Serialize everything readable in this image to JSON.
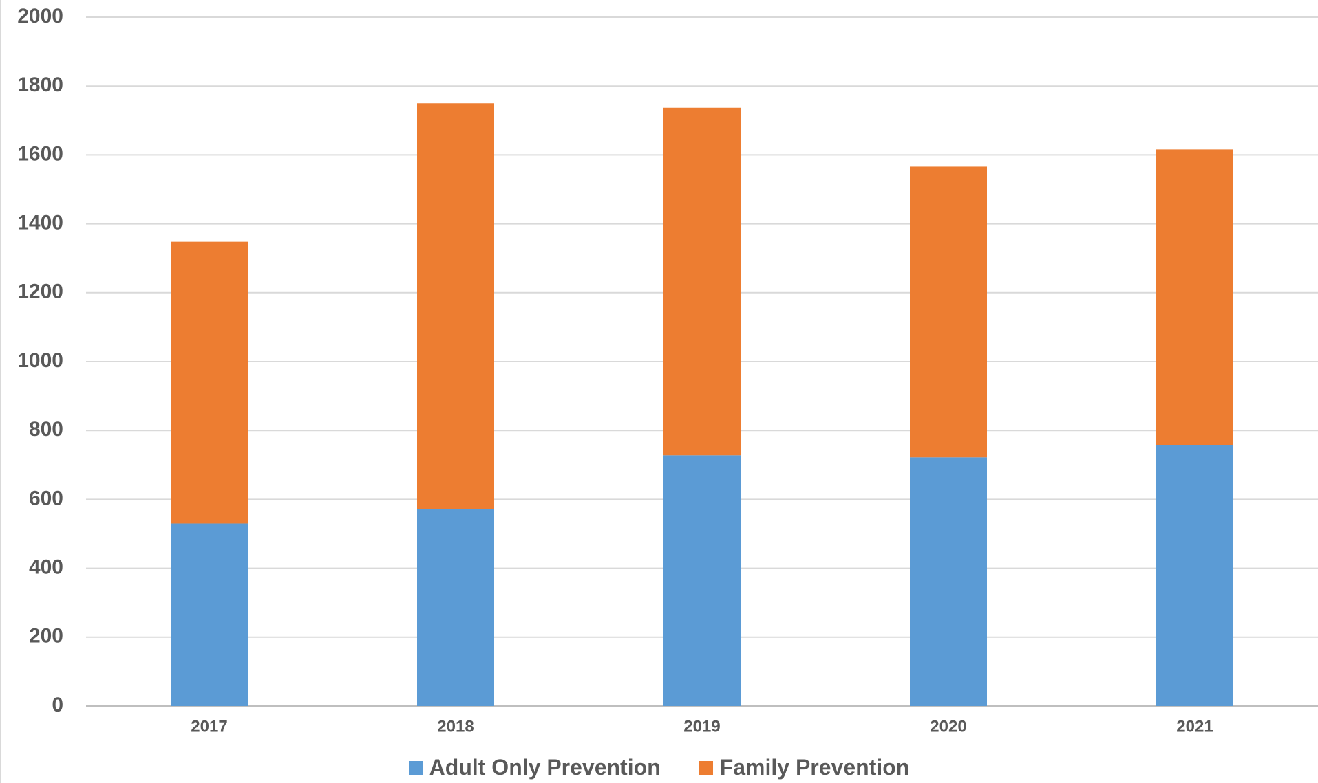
{
  "chart_data": {
    "type": "bar",
    "stacked": true,
    "categories": [
      "2017",
      "2018",
      "2019",
      "2020",
      "2021"
    ],
    "series": [
      {
        "name": "Adult Only Prevention",
        "color": "#5B9BD5",
        "values": [
          530,
          572,
          728,
          722,
          758
        ]
      },
      {
        "name": "Family Prevention",
        "color": "#ED7D31",
        "values": [
          818,
          1178,
          1009,
          844,
          858
        ]
      }
    ],
    "ylim": [
      0,
      2000
    ],
    "yticks": [
      0,
      200,
      400,
      600,
      800,
      1000,
      1200,
      1400,
      1600,
      1800,
      2000
    ],
    "title": "",
    "xlabel": "",
    "ylabel": "",
    "grid": true,
    "legend_position": "bottom"
  }
}
